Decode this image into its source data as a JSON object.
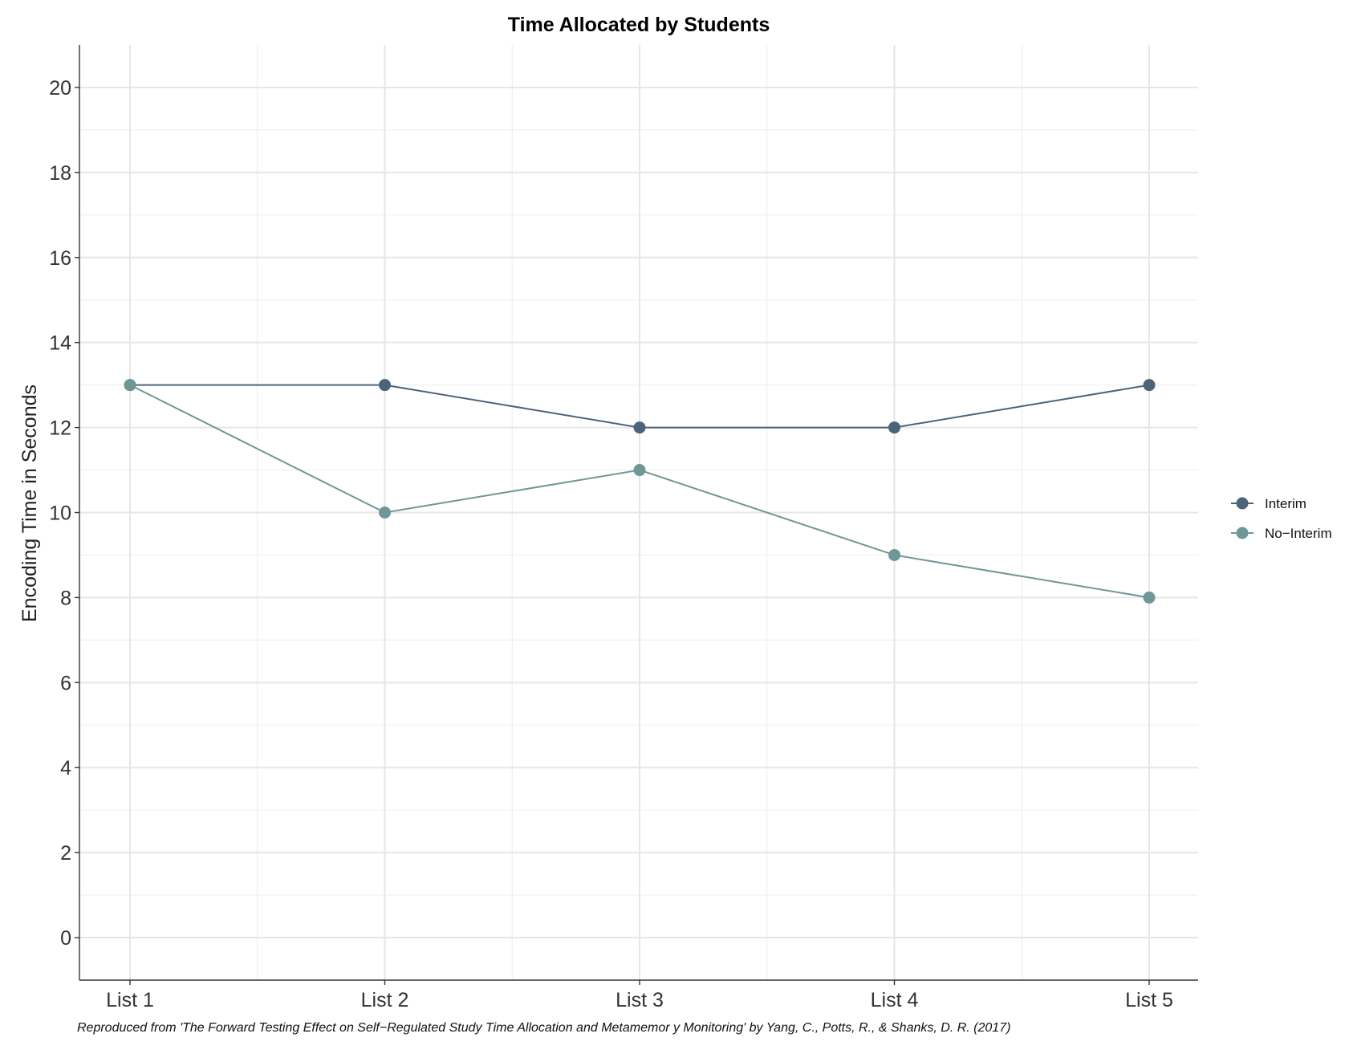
{
  "chart_data": {
    "type": "line",
    "title": "Time Allocated by Students",
    "xlabel": "",
    "ylabel": "Encoding Time in Seconds",
    "categories": [
      "List 1",
      "List 2",
      "List 3",
      "List 4",
      "List 5"
    ],
    "ylim": [
      -1,
      21
    ],
    "yticks": [
      0,
      2,
      4,
      6,
      8,
      10,
      12,
      14,
      16,
      18,
      20
    ],
    "grid": true,
    "legend_position": "right",
    "series": [
      {
        "name": "Interim",
        "values": [
          13,
          13,
          12,
          12,
          13
        ],
        "color": "#4d637a"
      },
      {
        "name": "No−Interim",
        "values": [
          13,
          10,
          11,
          9,
          8
        ],
        "color": "#6f9797"
      }
    ],
    "caption": "Reproduced from 'The Forward Testing Effect on Self−Regulated Study Time Allocation and Metamemor y Monitoring' by Yang, C., Potts, R., & Shanks, D. R. (2017)"
  }
}
